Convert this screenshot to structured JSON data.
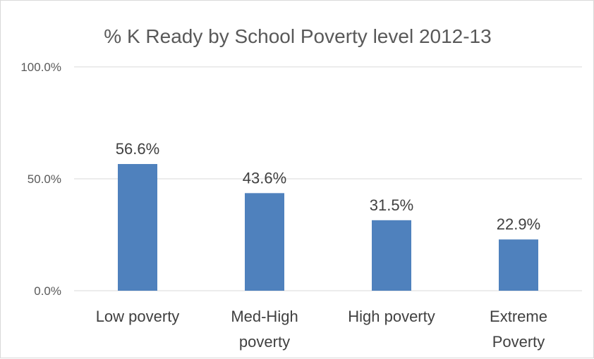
{
  "chart_data": {
    "type": "bar",
    "title": "% K Ready by School Poverty level 2012-13",
    "xlabel": "",
    "ylabel": "",
    "categories": [
      [
        "Low poverty"
      ],
      [
        "Med-High",
        "poverty"
      ],
      [
        "High poverty"
      ],
      [
        "Extreme",
        "Poverty"
      ]
    ],
    "values": [
      56.6,
      43.6,
      31.5,
      22.9
    ],
    "data_labels": [
      "56.6%",
      "43.6%",
      "31.5%",
      "22.9%"
    ],
    "ylim": [
      0,
      100
    ],
    "yticks": [
      0,
      50,
      100
    ],
    "ytick_labels": [
      "0.0%",
      "50.0%",
      "100.0%"
    ],
    "grid": true,
    "legend": "none",
    "bar_color": "#4f81bd",
    "grid_color": "#d9d9d9"
  }
}
